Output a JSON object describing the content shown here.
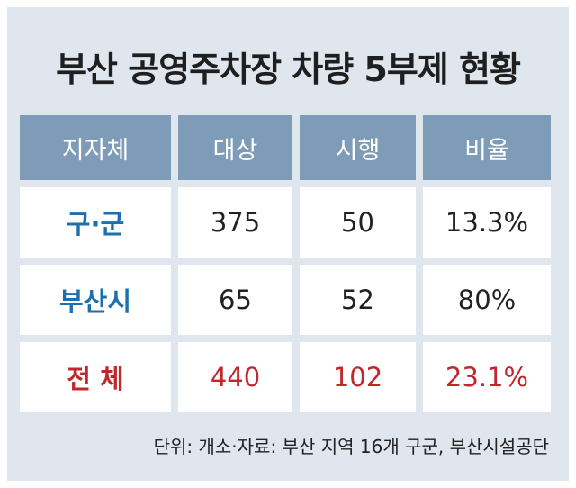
{
  "title": "부산 공영주차장 차량 5부제 현황",
  "table": {
    "header": [
      "지자체",
      "대상",
      "시행",
      "비율"
    ],
    "rows": [
      [
        "구·군",
        "375",
        "50",
        "13.3%"
      ],
      [
        "부산시",
        "65",
        "52",
        "80%"
      ],
      [
        "전 체",
        "440",
        "102",
        "23.1%"
      ]
    ]
  },
  "footnote": "단위: 개소·자료: 부산 지역 16개 구군, 부산시설공단"
}
